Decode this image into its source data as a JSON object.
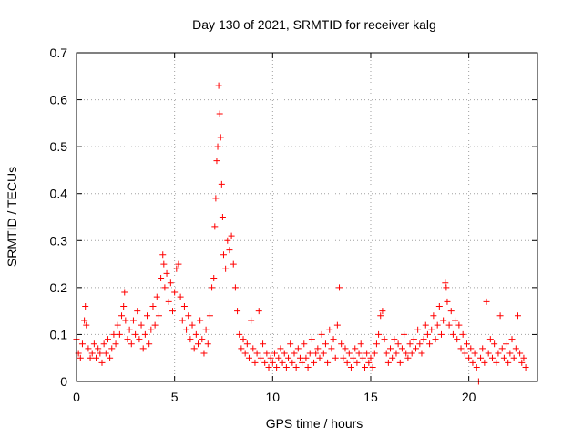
{
  "chart_data": {
    "type": "scatter",
    "title": "Day 130 of 2021, SRMTID for receiver kalg",
    "xlabel": "GPS time / hours",
    "ylabel": "SRMTID / TECUs",
    "xlim": [
      0,
      23.5
    ],
    "ylim": [
      0,
      0.7
    ],
    "xticks": [
      0,
      5,
      10,
      15,
      20
    ],
    "yticks": [
      0,
      0.1,
      0.2,
      0.3,
      0.4,
      0.5,
      0.6,
      0.7
    ],
    "xtick_labels": [
      "0",
      "5",
      "10",
      "15",
      "20"
    ],
    "ytick_labels": [
      "0",
      "0.1",
      "0.2",
      "0.3",
      "0.4",
      "0.5",
      "0.6",
      "0.7"
    ],
    "grid": true,
    "marker": "+",
    "color": "#ff0000",
    "series": [
      {
        "name": "SRMTID",
        "points": [
          [
            0.0,
            0.09
          ],
          [
            0.1,
            0.06
          ],
          [
            0.2,
            0.05
          ],
          [
            0.3,
            0.08
          ],
          [
            0.4,
            0.13
          ],
          [
            0.45,
            0.16
          ],
          [
            0.5,
            0.12
          ],
          [
            0.6,
            0.07
          ],
          [
            0.7,
            0.05
          ],
          [
            0.8,
            0.06
          ],
          [
            0.9,
            0.08
          ],
          [
            1.0,
            0.05
          ],
          [
            1.1,
            0.07
          ],
          [
            1.2,
            0.06
          ],
          [
            1.3,
            0.04
          ],
          [
            1.4,
            0.08
          ],
          [
            1.5,
            0.06
          ],
          [
            1.6,
            0.09
          ],
          [
            1.7,
            0.05
          ],
          [
            1.8,
            0.07
          ],
          [
            1.9,
            0.1
          ],
          [
            2.0,
            0.08
          ],
          [
            2.1,
            0.12
          ],
          [
            2.2,
            0.1
          ],
          [
            2.3,
            0.14
          ],
          [
            2.4,
            0.16
          ],
          [
            2.45,
            0.19
          ],
          [
            2.5,
            0.13
          ],
          [
            2.6,
            0.09
          ],
          [
            2.7,
            0.11
          ],
          [
            2.8,
            0.08
          ],
          [
            2.9,
            0.13
          ],
          [
            3.0,
            0.1
          ],
          [
            3.1,
            0.15
          ],
          [
            3.2,
            0.09
          ],
          [
            3.3,
            0.12
          ],
          [
            3.4,
            0.07
          ],
          [
            3.5,
            0.1
          ],
          [
            3.6,
            0.14
          ],
          [
            3.7,
            0.08
          ],
          [
            3.8,
            0.11
          ],
          [
            3.9,
            0.16
          ],
          [
            4.0,
            0.12
          ],
          [
            4.1,
            0.18
          ],
          [
            4.2,
            0.14
          ],
          [
            4.3,
            0.22
          ],
          [
            4.4,
            0.27
          ],
          [
            4.45,
            0.25
          ],
          [
            4.5,
            0.2
          ],
          [
            4.6,
            0.23
          ],
          [
            4.7,
            0.17
          ],
          [
            4.8,
            0.21
          ],
          [
            4.9,
            0.15
          ],
          [
            5.0,
            0.19
          ],
          [
            5.1,
            0.24
          ],
          [
            5.2,
            0.25
          ],
          [
            5.3,
            0.18
          ],
          [
            5.4,
            0.13
          ],
          [
            5.5,
            0.16
          ],
          [
            5.6,
            0.11
          ],
          [
            5.7,
            0.14
          ],
          [
            5.8,
            0.09
          ],
          [
            5.9,
            0.12
          ],
          [
            6.0,
            0.07
          ],
          [
            6.1,
            0.1
          ],
          [
            6.2,
            0.08
          ],
          [
            6.3,
            0.13
          ],
          [
            6.4,
            0.09
          ],
          [
            6.5,
            0.06
          ],
          [
            6.6,
            0.11
          ],
          [
            6.7,
            0.08
          ],
          [
            6.8,
            0.14
          ],
          [
            6.9,
            0.2
          ],
          [
            7.0,
            0.22
          ],
          [
            7.05,
            0.33
          ],
          [
            7.1,
            0.39
          ],
          [
            7.15,
            0.47
          ],
          [
            7.2,
            0.5
          ],
          [
            7.25,
            0.63
          ],
          [
            7.3,
            0.57
          ],
          [
            7.35,
            0.52
          ],
          [
            7.4,
            0.42
          ],
          [
            7.45,
            0.35
          ],
          [
            7.5,
            0.27
          ],
          [
            7.6,
            0.24
          ],
          [
            7.7,
            0.3
          ],
          [
            7.8,
            0.28
          ],
          [
            7.9,
            0.31
          ],
          [
            8.0,
            0.25
          ],
          [
            8.1,
            0.2
          ],
          [
            8.2,
            0.15
          ],
          [
            8.3,
            0.1
          ],
          [
            8.4,
            0.07
          ],
          [
            8.5,
            0.09
          ],
          [
            8.6,
            0.06
          ],
          [
            8.7,
            0.08
          ],
          [
            8.8,
            0.05
          ],
          [
            8.9,
            0.13
          ],
          [
            9.0,
            0.07
          ],
          [
            9.1,
            0.04
          ],
          [
            9.2,
            0.06
          ],
          [
            9.3,
            0.15
          ],
          [
            9.4,
            0.05
          ],
          [
            9.5,
            0.08
          ],
          [
            9.6,
            0.04
          ],
          [
            9.7,
            0.06
          ],
          [
            9.8,
            0.03
          ],
          [
            9.9,
            0.05
          ],
          [
            10.0,
            0.04
          ],
          [
            10.1,
            0.06
          ],
          [
            10.2,
            0.03
          ],
          [
            10.3,
            0.05
          ],
          [
            10.4,
            0.07
          ],
          [
            10.5,
            0.04
          ],
          [
            10.6,
            0.06
          ],
          [
            10.7,
            0.03
          ],
          [
            10.8,
            0.05
          ],
          [
            10.9,
            0.08
          ],
          [
            11.0,
            0.04
          ],
          [
            11.1,
            0.06
          ],
          [
            11.2,
            0.03
          ],
          [
            11.3,
            0.07
          ],
          [
            11.4,
            0.05
          ],
          [
            11.5,
            0.04
          ],
          [
            11.6,
            0.08
          ],
          [
            11.7,
            0.05
          ],
          [
            11.8,
            0.03
          ],
          [
            11.9,
            0.06
          ],
          [
            12.0,
            0.09
          ],
          [
            12.1,
            0.04
          ],
          [
            12.2,
            0.06
          ],
          [
            12.3,
            0.07
          ],
          [
            12.4,
            0.05
          ],
          [
            12.5,
            0.1
          ],
          [
            12.6,
            0.06
          ],
          [
            12.7,
            0.08
          ],
          [
            12.8,
            0.04
          ],
          [
            12.9,
            0.11
          ],
          [
            13.0,
            0.07
          ],
          [
            13.1,
            0.09
          ],
          [
            13.2,
            0.05
          ],
          [
            13.3,
            0.12
          ],
          [
            13.4,
            0.2
          ],
          [
            13.5,
            0.08
          ],
          [
            13.6,
            0.05
          ],
          [
            13.7,
            0.07
          ],
          [
            13.8,
            0.04
          ],
          [
            13.9,
            0.06
          ],
          [
            14.0,
            0.03
          ],
          [
            14.1,
            0.05
          ],
          [
            14.2,
            0.07
          ],
          [
            14.3,
            0.04
          ],
          [
            14.4,
            0.06
          ],
          [
            14.5,
            0.08
          ],
          [
            14.6,
            0.05
          ],
          [
            14.7,
            0.03
          ],
          [
            14.8,
            0.06
          ],
          [
            14.9,
            0.04
          ],
          [
            15.0,
            0.05
          ],
          [
            15.1,
            0.03
          ],
          [
            15.2,
            0.06
          ],
          [
            15.3,
            0.08
          ],
          [
            15.4,
            0.1
          ],
          [
            15.5,
            0.14
          ],
          [
            15.6,
            0.15
          ],
          [
            15.7,
            0.09
          ],
          [
            15.8,
            0.06
          ],
          [
            15.9,
            0.04
          ],
          [
            16.0,
            0.07
          ],
          [
            16.1,
            0.05
          ],
          [
            16.2,
            0.09
          ],
          [
            16.3,
            0.06
          ],
          [
            16.4,
            0.08
          ],
          [
            16.5,
            0.04
          ],
          [
            16.6,
            0.07
          ],
          [
            16.7,
            0.1
          ],
          [
            16.8,
            0.06
          ],
          [
            16.9,
            0.05
          ],
          [
            17.0,
            0.08
          ],
          [
            17.1,
            0.06
          ],
          [
            17.2,
            0.09
          ],
          [
            17.3,
            0.07
          ],
          [
            17.4,
            0.11
          ],
          [
            17.5,
            0.08
          ],
          [
            17.6,
            0.06
          ],
          [
            17.7,
            0.09
          ],
          [
            17.8,
            0.12
          ],
          [
            17.9,
            0.1
          ],
          [
            18.0,
            0.08
          ],
          [
            18.1,
            0.11
          ],
          [
            18.2,
            0.14
          ],
          [
            18.3,
            0.09
          ],
          [
            18.4,
            0.12
          ],
          [
            18.5,
            0.16
          ],
          [
            18.6,
            0.1
          ],
          [
            18.7,
            0.13
          ],
          [
            18.8,
            0.21
          ],
          [
            18.85,
            0.2
          ],
          [
            18.9,
            0.17
          ],
          [
            19.0,
            0.12
          ],
          [
            19.1,
            0.15
          ],
          [
            19.2,
            0.1
          ],
          [
            19.3,
            0.13
          ],
          [
            19.4,
            0.09
          ],
          [
            19.5,
            0.12
          ],
          [
            19.6,
            0.07
          ],
          [
            19.7,
            0.1
          ],
          [
            19.8,
            0.06
          ],
          [
            19.9,
            0.08
          ],
          [
            20.0,
            0.05
          ],
          [
            20.1,
            0.07
          ],
          [
            20.2,
            0.04
          ],
          [
            20.3,
            0.06
          ],
          [
            20.4,
            0.03
          ],
          [
            20.5,
            0.0
          ],
          [
            20.6,
            0.05
          ],
          [
            20.7,
            0.07
          ],
          [
            20.8,
            0.04
          ],
          [
            20.9,
            0.17
          ],
          [
            21.0,
            0.06
          ],
          [
            21.1,
            0.09
          ],
          [
            21.2,
            0.05
          ],
          [
            21.3,
            0.08
          ],
          [
            21.4,
            0.04
          ],
          [
            21.5,
            0.06
          ],
          [
            21.6,
            0.14
          ],
          [
            21.7,
            0.07
          ],
          [
            21.8,
            0.05
          ],
          [
            21.9,
            0.08
          ],
          [
            22.0,
            0.04
          ],
          [
            22.1,
            0.06
          ],
          [
            22.2,
            0.09
          ],
          [
            22.3,
            0.05
          ],
          [
            22.4,
            0.07
          ],
          [
            22.5,
            0.14
          ],
          [
            22.6,
            0.06
          ],
          [
            22.7,
            0.04
          ],
          [
            22.8,
            0.05
          ],
          [
            22.9,
            0.03
          ]
        ]
      }
    ]
  }
}
